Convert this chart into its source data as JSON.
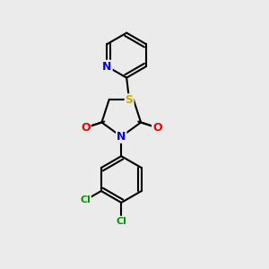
{
  "background_color": "#ebebeb",
  "atom_colors": {
    "C": "#000000",
    "N": "#0000ee",
    "O": "#ee0000",
    "S": "#ccaa00",
    "Cl": "#009900"
  },
  "bond_color": "#000000",
  "bond_width": 1.5,
  "figsize": [
    3.0,
    3.0
  ],
  "dpi": 100
}
